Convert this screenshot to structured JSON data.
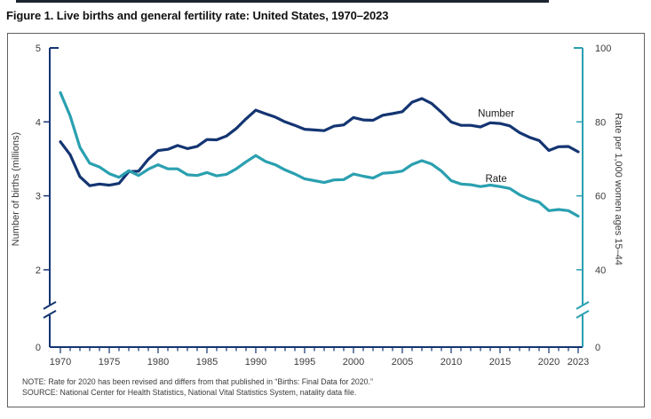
{
  "title": "Figure 1. Live births and general fertility rate: United States, 1970–2023",
  "notes": {
    "note": "NOTE: Rate for 2020 has been revised and differs from that published in “Births: Final Data for 2020.”",
    "source": "SOURCE: National Center for Health Statistics, National Vital Statistics System, natality data file."
  },
  "colors": {
    "births_line": "#143572",
    "rate_line": "#2AA0B0",
    "axis_left": "#143572",
    "axis_right": "#2AA0B0",
    "text": "#3c3c3c",
    "label_text": "#1a1a1a",
    "border": "#606060"
  },
  "chart_data": {
    "type": "line",
    "grid": false,
    "legend_position": "inline-labels",
    "x": [
      1970,
      1971,
      1972,
      1973,
      1974,
      1975,
      1976,
      1977,
      1978,
      1979,
      1980,
      1981,
      1982,
      1983,
      1984,
      1985,
      1986,
      1987,
      1988,
      1989,
      1990,
      1991,
      1992,
      1993,
      1994,
      1995,
      1996,
      1997,
      1998,
      1999,
      2000,
      2001,
      2002,
      2003,
      2004,
      2005,
      2006,
      2007,
      2008,
      2009,
      2010,
      2011,
      2012,
      2013,
      2014,
      2015,
      2016,
      2017,
      2018,
      2019,
      2020,
      2021,
      2022,
      2023
    ],
    "series": [
      {
        "name": "Number",
        "axis": "left",
        "color_key": "births_line",
        "values": [
          3.731,
          3.556,
          3.258,
          3.137,
          3.16,
          3.144,
          3.168,
          3.327,
          3.333,
          3.494,
          3.612,
          3.629,
          3.681,
          3.639,
          3.669,
          3.761,
          3.757,
          3.809,
          3.91,
          4.041,
          4.158,
          4.111,
          4.065,
          4.0,
          3.953,
          3.9,
          3.891,
          3.881,
          3.942,
          3.959,
          4.059,
          4.026,
          4.022,
          4.09,
          4.112,
          4.138,
          4.266,
          4.316,
          4.248,
          4.131,
          3.999,
          3.954,
          3.953,
          3.932,
          3.988,
          3.978,
          3.946,
          3.855,
          3.792,
          3.748,
          3.614,
          3.664,
          3.667,
          3.596
        ]
      },
      {
        "name": "Rate",
        "axis": "right",
        "color_key": "rate_line",
        "values": [
          87.9,
          81.6,
          73.1,
          68.8,
          67.8,
          66.0,
          65.0,
          66.8,
          65.5,
          67.2,
          68.4,
          67.3,
          67.3,
          65.7,
          65.5,
          66.3,
          65.4,
          65.8,
          67.3,
          69.2,
          70.9,
          69.3,
          68.4,
          67.0,
          65.9,
          64.6,
          64.1,
          63.6,
          64.3,
          64.4,
          65.9,
          65.3,
          64.8,
          66.1,
          66.3,
          66.7,
          68.5,
          69.5,
          68.6,
          66.7,
          64.1,
          63.2,
          63.0,
          62.5,
          62.9,
          62.5,
          62.0,
          60.3,
          59.1,
          58.3,
          56.0,
          56.3,
          56.0,
          54.5
        ]
      }
    ],
    "left_axis": {
      "title": "Number of births (millions)",
      "ticks": [
        5,
        4,
        3,
        2,
        0
      ],
      "range": [
        0,
        5
      ],
      "axis_break": true
    },
    "right_axis": {
      "title": "Rate per 1,000 women ages 15–44",
      "ticks": [
        100,
        80,
        60,
        40,
        0
      ],
      "range": [
        0,
        100
      ],
      "axis_break": true
    },
    "x_axis": {
      "labeled_ticks": [
        1970,
        1975,
        1980,
        1985,
        1990,
        1995,
        2000,
        2005,
        2010,
        2015,
        2020,
        2023
      ],
      "tick_every_year": true
    },
    "annotations": [
      {
        "text": "Number",
        "year": 2014.6,
        "axis": "left",
        "value": 4.12
      },
      {
        "text": "Rate",
        "year": 2014.6,
        "axis": "right",
        "value": 64.7
      }
    ]
  }
}
